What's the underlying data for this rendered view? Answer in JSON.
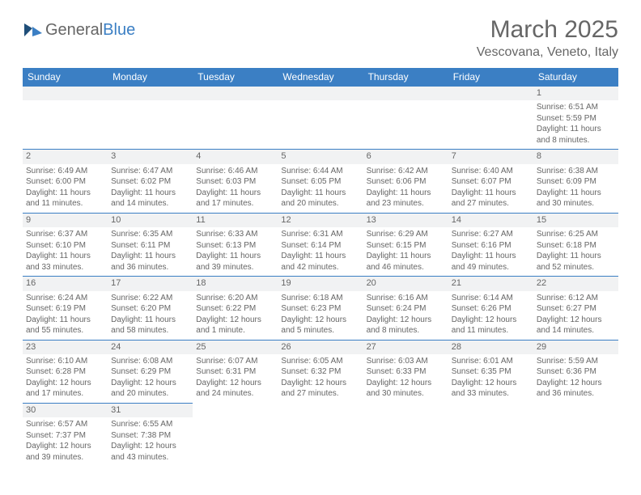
{
  "logo": {
    "part1": "General",
    "part2": "Blue"
  },
  "title": "March 2025",
  "location": "Vescovana, Veneto, Italy",
  "dayHeaders": [
    "Sunday",
    "Monday",
    "Tuesday",
    "Wednesday",
    "Thursday",
    "Friday",
    "Saturday"
  ],
  "colors": {
    "header_bg": "#3b7fc4",
    "header_text": "#ffffff",
    "daynum_bg": "#f1f2f3",
    "border": "#3b7fc4",
    "text": "#666666"
  },
  "weeks": [
    [
      null,
      null,
      null,
      null,
      null,
      null,
      {
        "n": "1",
        "sunrise": "Sunrise: 6:51 AM",
        "sunset": "Sunset: 5:59 PM",
        "daylight": "Daylight: 11 hours and 8 minutes."
      }
    ],
    [
      {
        "n": "2",
        "sunrise": "Sunrise: 6:49 AM",
        "sunset": "Sunset: 6:00 PM",
        "daylight": "Daylight: 11 hours and 11 minutes."
      },
      {
        "n": "3",
        "sunrise": "Sunrise: 6:47 AM",
        "sunset": "Sunset: 6:02 PM",
        "daylight": "Daylight: 11 hours and 14 minutes."
      },
      {
        "n": "4",
        "sunrise": "Sunrise: 6:46 AM",
        "sunset": "Sunset: 6:03 PM",
        "daylight": "Daylight: 11 hours and 17 minutes."
      },
      {
        "n": "5",
        "sunrise": "Sunrise: 6:44 AM",
        "sunset": "Sunset: 6:05 PM",
        "daylight": "Daylight: 11 hours and 20 minutes."
      },
      {
        "n": "6",
        "sunrise": "Sunrise: 6:42 AM",
        "sunset": "Sunset: 6:06 PM",
        "daylight": "Daylight: 11 hours and 23 minutes."
      },
      {
        "n": "7",
        "sunrise": "Sunrise: 6:40 AM",
        "sunset": "Sunset: 6:07 PM",
        "daylight": "Daylight: 11 hours and 27 minutes."
      },
      {
        "n": "8",
        "sunrise": "Sunrise: 6:38 AM",
        "sunset": "Sunset: 6:09 PM",
        "daylight": "Daylight: 11 hours and 30 minutes."
      }
    ],
    [
      {
        "n": "9",
        "sunrise": "Sunrise: 6:37 AM",
        "sunset": "Sunset: 6:10 PM",
        "daylight": "Daylight: 11 hours and 33 minutes."
      },
      {
        "n": "10",
        "sunrise": "Sunrise: 6:35 AM",
        "sunset": "Sunset: 6:11 PM",
        "daylight": "Daylight: 11 hours and 36 minutes."
      },
      {
        "n": "11",
        "sunrise": "Sunrise: 6:33 AM",
        "sunset": "Sunset: 6:13 PM",
        "daylight": "Daylight: 11 hours and 39 minutes."
      },
      {
        "n": "12",
        "sunrise": "Sunrise: 6:31 AM",
        "sunset": "Sunset: 6:14 PM",
        "daylight": "Daylight: 11 hours and 42 minutes."
      },
      {
        "n": "13",
        "sunrise": "Sunrise: 6:29 AM",
        "sunset": "Sunset: 6:15 PM",
        "daylight": "Daylight: 11 hours and 46 minutes."
      },
      {
        "n": "14",
        "sunrise": "Sunrise: 6:27 AM",
        "sunset": "Sunset: 6:16 PM",
        "daylight": "Daylight: 11 hours and 49 minutes."
      },
      {
        "n": "15",
        "sunrise": "Sunrise: 6:25 AM",
        "sunset": "Sunset: 6:18 PM",
        "daylight": "Daylight: 11 hours and 52 minutes."
      }
    ],
    [
      {
        "n": "16",
        "sunrise": "Sunrise: 6:24 AM",
        "sunset": "Sunset: 6:19 PM",
        "daylight": "Daylight: 11 hours and 55 minutes."
      },
      {
        "n": "17",
        "sunrise": "Sunrise: 6:22 AM",
        "sunset": "Sunset: 6:20 PM",
        "daylight": "Daylight: 11 hours and 58 minutes."
      },
      {
        "n": "18",
        "sunrise": "Sunrise: 6:20 AM",
        "sunset": "Sunset: 6:22 PM",
        "daylight": "Daylight: 12 hours and 1 minute."
      },
      {
        "n": "19",
        "sunrise": "Sunrise: 6:18 AM",
        "sunset": "Sunset: 6:23 PM",
        "daylight": "Daylight: 12 hours and 5 minutes."
      },
      {
        "n": "20",
        "sunrise": "Sunrise: 6:16 AM",
        "sunset": "Sunset: 6:24 PM",
        "daylight": "Daylight: 12 hours and 8 minutes."
      },
      {
        "n": "21",
        "sunrise": "Sunrise: 6:14 AM",
        "sunset": "Sunset: 6:26 PM",
        "daylight": "Daylight: 12 hours and 11 minutes."
      },
      {
        "n": "22",
        "sunrise": "Sunrise: 6:12 AM",
        "sunset": "Sunset: 6:27 PM",
        "daylight": "Daylight: 12 hours and 14 minutes."
      }
    ],
    [
      {
        "n": "23",
        "sunrise": "Sunrise: 6:10 AM",
        "sunset": "Sunset: 6:28 PM",
        "daylight": "Daylight: 12 hours and 17 minutes."
      },
      {
        "n": "24",
        "sunrise": "Sunrise: 6:08 AM",
        "sunset": "Sunset: 6:29 PM",
        "daylight": "Daylight: 12 hours and 20 minutes."
      },
      {
        "n": "25",
        "sunrise": "Sunrise: 6:07 AM",
        "sunset": "Sunset: 6:31 PM",
        "daylight": "Daylight: 12 hours and 24 minutes."
      },
      {
        "n": "26",
        "sunrise": "Sunrise: 6:05 AM",
        "sunset": "Sunset: 6:32 PM",
        "daylight": "Daylight: 12 hours and 27 minutes."
      },
      {
        "n": "27",
        "sunrise": "Sunrise: 6:03 AM",
        "sunset": "Sunset: 6:33 PM",
        "daylight": "Daylight: 12 hours and 30 minutes."
      },
      {
        "n": "28",
        "sunrise": "Sunrise: 6:01 AM",
        "sunset": "Sunset: 6:35 PM",
        "daylight": "Daylight: 12 hours and 33 minutes."
      },
      {
        "n": "29",
        "sunrise": "Sunrise: 5:59 AM",
        "sunset": "Sunset: 6:36 PM",
        "daylight": "Daylight: 12 hours and 36 minutes."
      }
    ],
    [
      {
        "n": "30",
        "sunrise": "Sunrise: 6:57 AM",
        "sunset": "Sunset: 7:37 PM",
        "daylight": "Daylight: 12 hours and 39 minutes."
      },
      {
        "n": "31",
        "sunrise": "Sunrise: 6:55 AM",
        "sunset": "Sunset: 7:38 PM",
        "daylight": "Daylight: 12 hours and 43 minutes."
      },
      null,
      null,
      null,
      null,
      null
    ]
  ]
}
